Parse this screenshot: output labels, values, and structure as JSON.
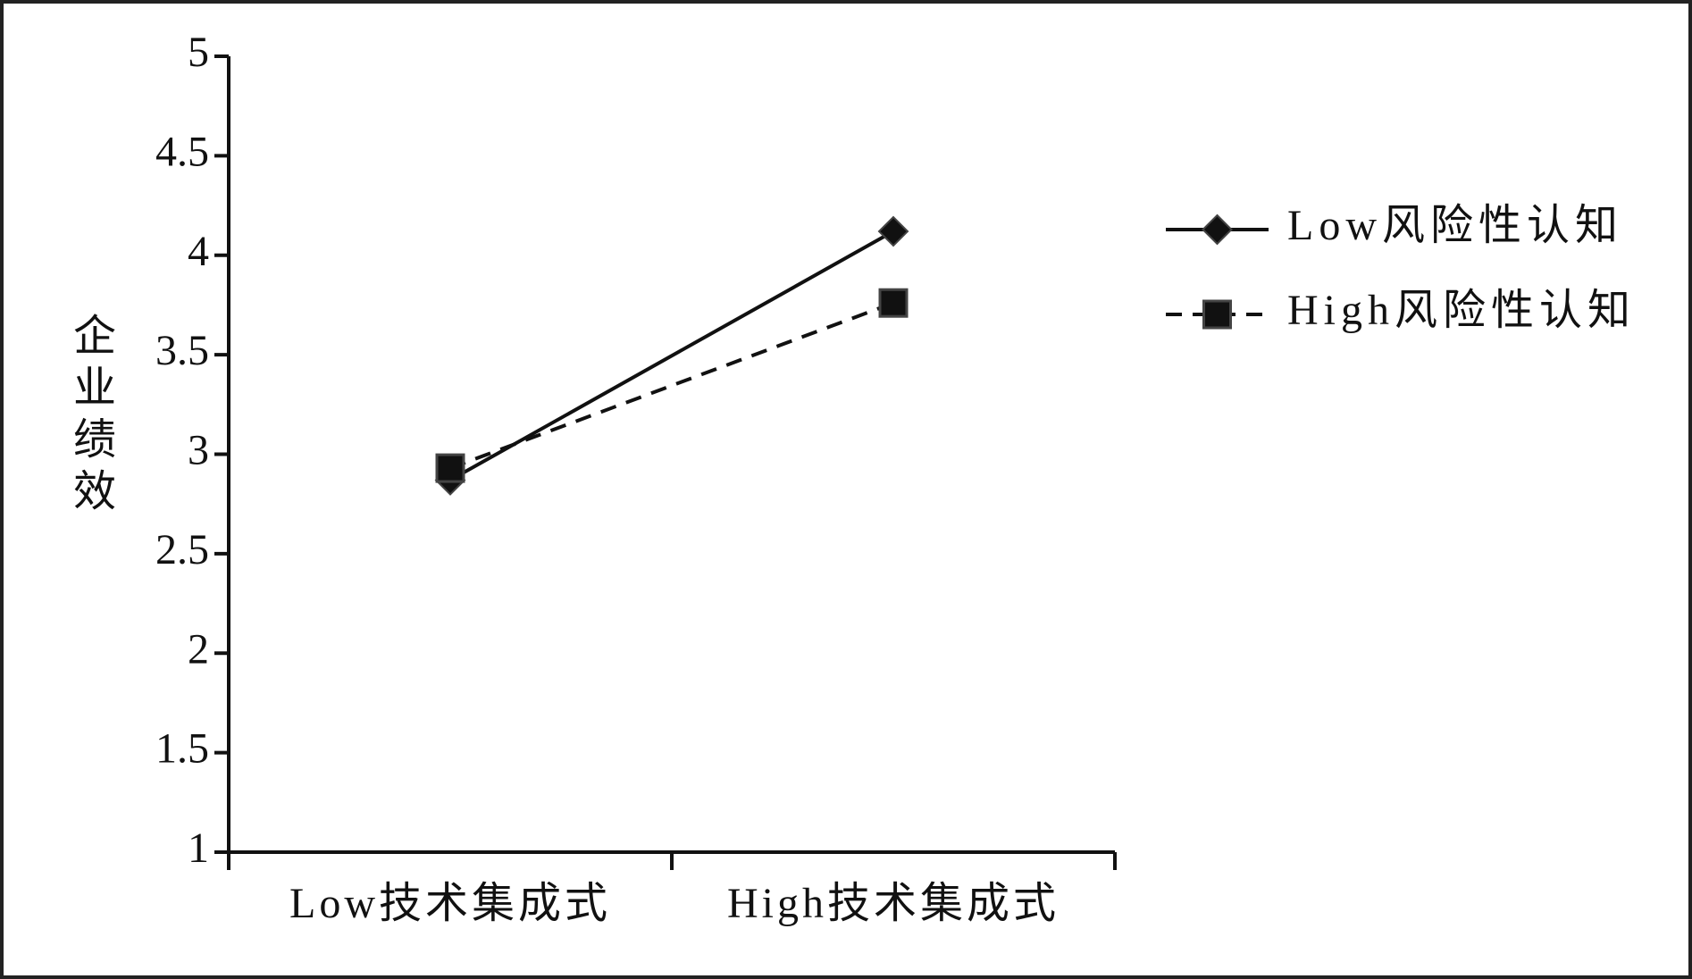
{
  "chart_data": {
    "type": "line",
    "ylabel": "企业绩效",
    "categories": [
      "Low技术集成式",
      "High技术集成式"
    ],
    "series": [
      {
        "name": "Low风险性认知",
        "color": "#111111",
        "linestyle": "solid",
        "marker": "diamond",
        "values": [
          2.87,
          4.12
        ]
      },
      {
        "name": "High风险性认知",
        "color": "#111111",
        "linestyle": "dashed",
        "marker": "square",
        "values": [
          2.93,
          3.76
        ]
      }
    ],
    "ylim": [
      1,
      5
    ],
    "yticks": [
      1,
      1.5,
      2,
      2.5,
      3,
      3.5,
      4,
      4.5,
      5
    ],
    "grid": false,
    "legend": "right"
  }
}
